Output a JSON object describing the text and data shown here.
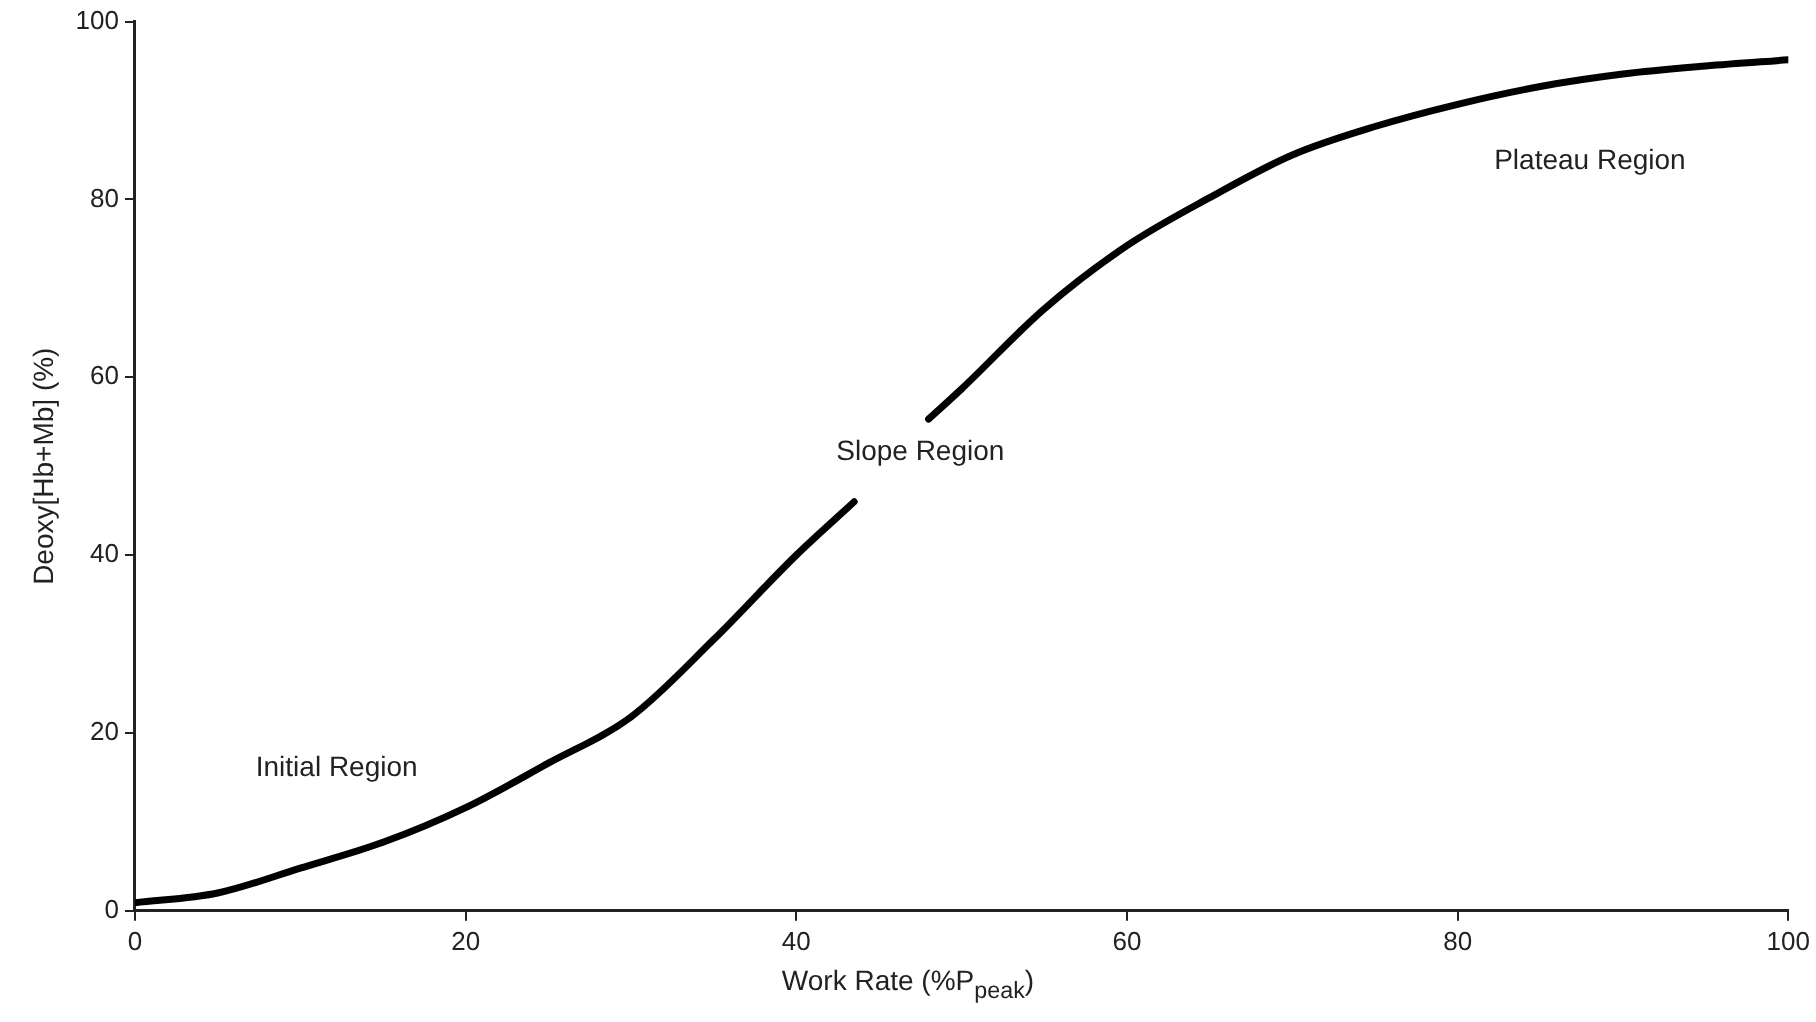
{
  "chart_data": {
    "type": "line",
    "xlabel": "Work Rate (%P$_{peak}$)",
    "ylabel": "Deoxy[Hb+Mb] (%)",
    "x": [
      0,
      5,
      10,
      15,
      20,
      25,
      30,
      35,
      40,
      43.5,
      46,
      48,
      50,
      55,
      60,
      65,
      70,
      75,
      80,
      85,
      90,
      95,
      100
    ],
    "series": [
      {
        "color": "#000000",
        "values": [
          0.9,
          2,
          4.8,
          7.7,
          11.6,
          16.6,
          21.8,
          30.5,
          40,
          46,
          null,
          55.3,
          58.7,
          67.7,
          74.8,
          80.2,
          85,
          88.2,
          90.7,
          92.7,
          94.1,
          95,
          95.7
        ]
      }
    ],
    "xlim": [
      0,
      100
    ],
    "xticks": [
      0,
      20,
      40,
      60,
      80,
      100
    ],
    "ylim": [
      0,
      100
    ],
    "yticks": [
      0,
      20,
      40,
      60,
      80,
      100
    ],
    "grid": false,
    "legend": false,
    "marker": "none",
    "line_style": "solid",
    "annotations": [
      "Initial Region",
      "Slope Region",
      "Plateau Region"
    ]
  }
}
